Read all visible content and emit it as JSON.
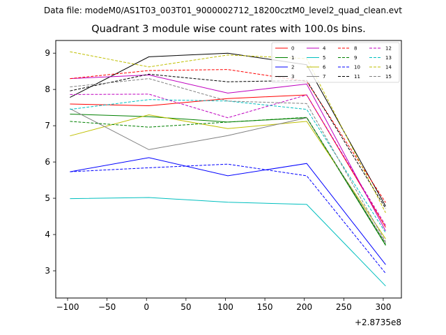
{
  "figure": {
    "suptitle": "Data file: modeM0/AS1T03_003T01_9000002712_18200cztM0_level2_quad_clean.evt"
  },
  "chart_data": {
    "type": "line",
    "title": "Quadrant 3 module wise count rates with 100.0s bins.",
    "xlabel": "",
    "ylabel": "",
    "x_offset_label": "+2.8735e8",
    "x": [
      -97,
      3,
      103,
      203,
      303
    ],
    "xlim": [
      -115,
      323
    ],
    "ylim": [
      2.25,
      9.35
    ],
    "xticks": [
      -100,
      -50,
      0,
      50,
      100,
      150,
      200,
      250,
      300
    ],
    "xtick_labels": [
      "−100",
      "−50",
      "0",
      "50",
      "100",
      "150",
      "200",
      "250",
      "300"
    ],
    "yticks": [
      3,
      4,
      5,
      6,
      7,
      8,
      9
    ],
    "ytick_labels": [
      "3",
      "4",
      "5",
      "6",
      "7",
      "8",
      "9"
    ],
    "grid": false,
    "legend": {
      "position": "top-right",
      "columns": 4
    },
    "series": [
      {
        "name": "0",
        "color": "#ff0000",
        "style": "solid",
        "values": [
          7.6,
          7.55,
          7.75,
          7.85,
          4.2
        ]
      },
      {
        "name": "1",
        "color": "#008000",
        "style": "solid",
        "values": [
          7.32,
          7.25,
          7.1,
          7.22,
          3.7
        ]
      },
      {
        "name": "2",
        "color": "#0000ff",
        "style": "solid",
        "values": [
          5.73,
          6.12,
          5.62,
          5.96,
          3.17
        ]
      },
      {
        "name": "3",
        "color": "#000000",
        "style": "solid",
        "values": [
          7.78,
          8.9,
          9.0,
          8.68,
          4.78
        ]
      },
      {
        "name": "4",
        "color": "#bf00bf",
        "style": "solid",
        "values": [
          8.3,
          8.4,
          7.9,
          8.15,
          4.1
        ]
      },
      {
        "name": "5",
        "color": "#00bfbf",
        "style": "solid",
        "values": [
          4.99,
          5.02,
          4.89,
          4.83,
          2.58
        ]
      },
      {
        "name": "6",
        "color": "#bfbf00",
        "style": "solid",
        "values": [
          6.72,
          7.3,
          6.92,
          7.12,
          3.88
        ]
      },
      {
        "name": "7",
        "color": "#808080",
        "style": "solid",
        "values": [
          7.47,
          6.34,
          6.73,
          7.22,
          3.76
        ]
      },
      {
        "name": "8",
        "color": "#ff0000",
        "style": "dashed",
        "values": [
          8.3,
          8.52,
          8.55,
          8.22,
          4.88
        ]
      },
      {
        "name": "9",
        "color": "#008000",
        "style": "dashed",
        "values": [
          7.12,
          6.96,
          7.1,
          7.23,
          3.72
        ]
      },
      {
        "name": "10",
        "color": "#0000ff",
        "style": "dashed",
        "values": [
          5.73,
          5.84,
          5.94,
          5.62,
          2.93
        ]
      },
      {
        "name": "11",
        "color": "#000000",
        "style": "dashed",
        "values": [
          7.96,
          8.42,
          8.21,
          8.25,
          4.72
        ]
      },
      {
        "name": "12",
        "color": "#bf00bf",
        "style": "dashed",
        "values": [
          7.86,
          7.87,
          7.22,
          7.85,
          4.25
        ]
      },
      {
        "name": "13",
        "color": "#00bfbf",
        "style": "dashed",
        "values": [
          7.45,
          7.72,
          7.68,
          7.45,
          4.05
        ]
      },
      {
        "name": "14",
        "color": "#bfbf00",
        "style": "dashed",
        "values": [
          9.04,
          8.62,
          8.95,
          8.85,
          4.6
        ]
      },
      {
        "name": "15",
        "color": "#808080",
        "style": "dashed",
        "values": [
          8.07,
          8.3,
          7.68,
          7.61,
          3.8
        ]
      }
    ]
  }
}
